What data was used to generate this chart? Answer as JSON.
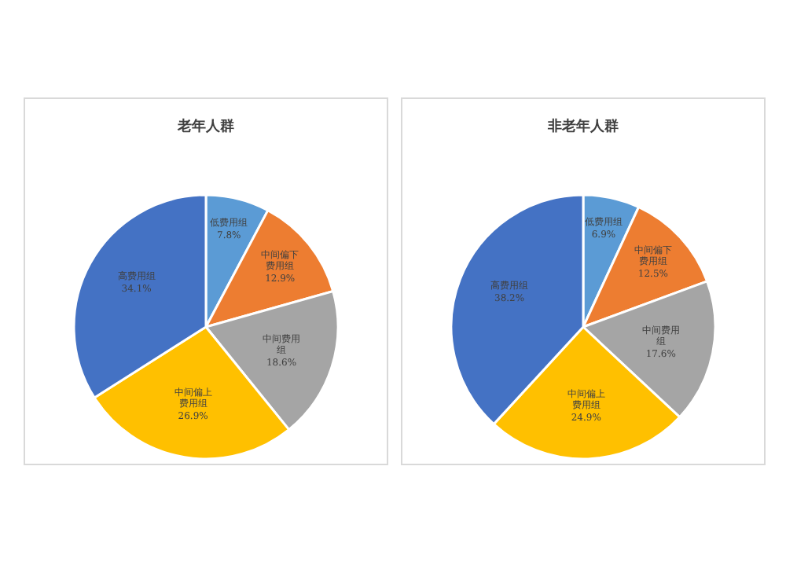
{
  "chart_data": [
    {
      "type": "pie",
      "title": "老年人群",
      "categories": [
        "低费用组",
        "中间偏下费用组",
        "中间费用组",
        "中间偏上费用组",
        "高费用组"
      ],
      "values": [
        7.8,
        12.9,
        18.6,
        26.9,
        34.1
      ],
      "value_labels": [
        "7.8%",
        "12.9%",
        "18.6%",
        "26.9%",
        "34.1%"
      ],
      "colors": [
        "#5b9bd5",
        "#ed7d31",
        "#a5a5a5",
        "#ffc000",
        "#4472c4"
      ],
      "legend": false
    },
    {
      "type": "pie",
      "title": "非老年人群",
      "categories": [
        "低费用组",
        "中间偏下费用组",
        "中间费用组",
        "中间偏上费用组",
        "高费用组"
      ],
      "values": [
        6.9,
        12.5,
        17.6,
        24.9,
        38.2
      ],
      "value_labels": [
        "6.9%",
        "12.5%",
        "17.6%",
        "24.9%",
        "38.2%"
      ],
      "colors": [
        "#5b9bd5",
        "#ed7d31",
        "#a5a5a5",
        "#ffc000",
        "#4472c4"
      ],
      "legend": false
    }
  ]
}
